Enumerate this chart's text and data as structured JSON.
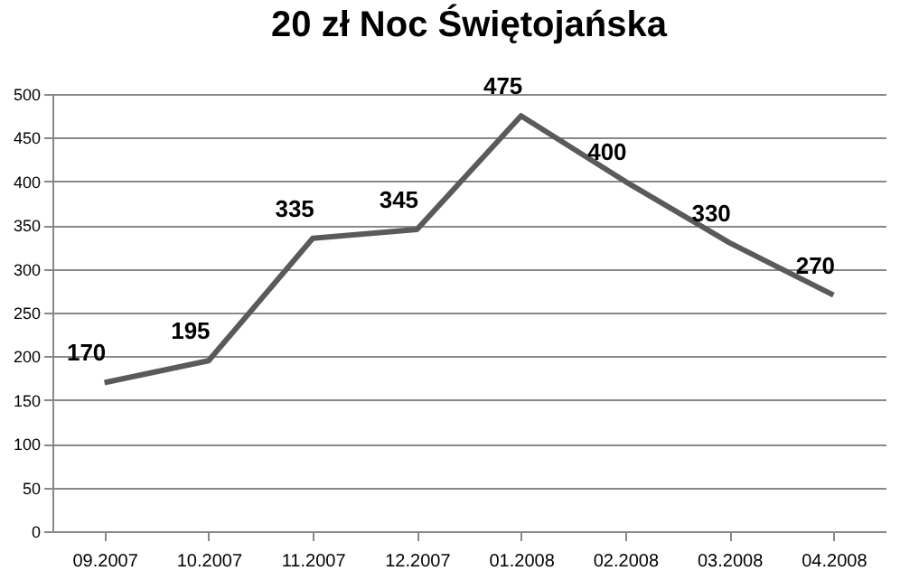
{
  "chart_data": {
    "type": "line",
    "title": "20 zł Noc Świętojańska",
    "categories": [
      "09.2007",
      "10.2007",
      "11.2007",
      "12.2007",
      "01.2008",
      "02.2008",
      "03.2008",
      "04.2008"
    ],
    "series": [
      {
        "color": "#5a5a5a",
        "values": [
          170,
          195,
          335,
          345,
          475,
          400,
          330,
          270
        ]
      }
    ],
    "ylim": [
      0,
      500
    ],
    "yticks": [
      0,
      50,
      100,
      150,
      200,
      250,
      300,
      350,
      400,
      450,
      500
    ],
    "grid": "y",
    "data_labels": true,
    "marker": "none",
    "line_style": "solid",
    "legend": false
  }
}
